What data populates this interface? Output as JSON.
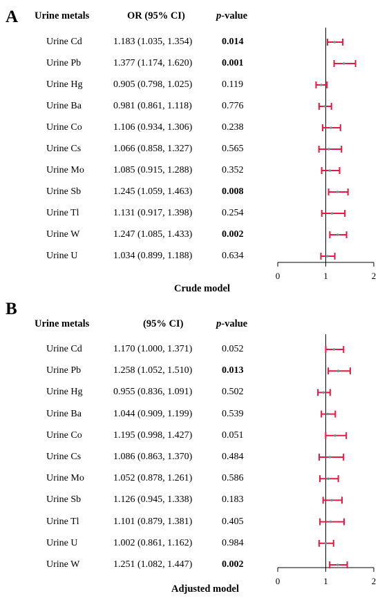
{
  "chart_data": [
    {
      "type": "forest",
      "panel_label": "A",
      "model_label": "Crude model",
      "headers": {
        "metal": "Urine metals",
        "or": "OR (95% CI)",
        "p": "p-value",
        "p_italic": "p",
        "p_rest": "-value"
      },
      "x_ticks": [
        0,
        1,
        2
      ],
      "xlim": [
        0,
        2
      ],
      "reference_line": 1,
      "rows": [
        {
          "metal": "Urine Cd",
          "or": 1.183,
          "lo": 1.035,
          "hi": 1.354,
          "or_text": "1.183 (1.035, 1.354)",
          "p": "0.014",
          "significant": true
        },
        {
          "metal": "Urine Pb",
          "or": 1.377,
          "lo": 1.174,
          "hi": 1.62,
          "or_text": "1.377 (1.174, 1.620)",
          "p": "0.001",
          "significant": true
        },
        {
          "metal": "Urine Hg",
          "or": 0.905,
          "lo": 0.798,
          "hi": 1.025,
          "or_text": "0.905 (0.798, 1.025)",
          "p": "0.119",
          "significant": false
        },
        {
          "metal": "Urine Ba",
          "or": 0.981,
          "lo": 0.861,
          "hi": 1.118,
          "or_text": "0.981 (0.861, 1.118)",
          "p": "0.776",
          "significant": false
        },
        {
          "metal": "Urine Co",
          "or": 1.106,
          "lo": 0.934,
          "hi": 1.306,
          "or_text": "1.106 (0.934, 1.306)",
          "p": "0.238",
          "significant": false
        },
        {
          "metal": "Urine Cs",
          "or": 1.066,
          "lo": 0.858,
          "hi": 1.327,
          "or_text": "1.066 (0.858, 1.327)",
          "p": "0.565",
          "significant": false
        },
        {
          "metal": "Urine Mo",
          "or": 1.085,
          "lo": 0.915,
          "hi": 1.288,
          "or_text": "1.085 (0.915, 1.288)",
          "p": "0.352",
          "significant": false
        },
        {
          "metal": "Urine Sb",
          "or": 1.245,
          "lo": 1.059,
          "hi": 1.463,
          "or_text": "1.245 (1.059, 1.463)",
          "p": "0.008",
          "significant": true
        },
        {
          "metal": "Urine Tl",
          "or": 1.131,
          "lo": 0.917,
          "hi": 1.398,
          "or_text": "1.131 (0.917, 1.398)",
          "p": "0.254",
          "significant": false
        },
        {
          "metal": "Urine W",
          "or": 1.247,
          "lo": 1.085,
          "hi": 1.433,
          "or_text": "1.247 (1.085, 1.433)",
          "p": "0.002",
          "significant": true
        },
        {
          "metal": "Urine U",
          "or": 1.034,
          "lo": 0.899,
          "hi": 1.188,
          "or_text": "1.034 (0.899, 1.188)",
          "p": "0.634",
          "significant": false
        }
      ]
    },
    {
      "type": "forest",
      "panel_label": "B",
      "model_label": "Adjusted model",
      "headers": {
        "metal": "Urine metals",
        "or": "(95% CI)",
        "p": "p-value",
        "p_italic": "p",
        "p_rest": "-value"
      },
      "x_ticks": [
        0,
        1,
        2
      ],
      "xlim": [
        0,
        2
      ],
      "reference_line": 1,
      "rows": [
        {
          "metal": "Urine Cd",
          "or": 1.17,
          "lo": 1.0,
          "hi": 1.371,
          "or_text": "1.170 (1.000, 1.371)",
          "p": "0.052",
          "significant": false
        },
        {
          "metal": "Urine Pb",
          "or": 1.258,
          "lo": 1.052,
          "hi": 1.51,
          "or_text": "1.258 (1.052, 1.510)",
          "p": "0.013",
          "significant": true
        },
        {
          "metal": "Urine Hg",
          "or": 0.955,
          "lo": 0.836,
          "hi": 1.091,
          "or_text": "0.955 (0.836, 1.091)",
          "p": "0.502",
          "significant": false
        },
        {
          "metal": "Urine Ba",
          "or": 1.044,
          "lo": 0.909,
          "hi": 1.199,
          "or_text": "1.044 (0.909, 1.199)",
          "p": "0.539",
          "significant": false
        },
        {
          "metal": "Urine Co",
          "or": 1.195,
          "lo": 0.998,
          "hi": 1.427,
          "or_text": "1.195 (0.998, 1.427)",
          "p": "0.051",
          "significant": false
        },
        {
          "metal": "Urine Cs",
          "or": 1.086,
          "lo": 0.863,
          "hi": 1.37,
          "or_text": "1.086 (0.863, 1.370)",
          "p": "0.484",
          "significant": false
        },
        {
          "metal": "Urine Mo",
          "or": 1.052,
          "lo": 0.878,
          "hi": 1.261,
          "or_text": "1.052 (0.878, 1.261)",
          "p": "0.586",
          "significant": false
        },
        {
          "metal": "Urine Sb",
          "or": 1.126,
          "lo": 0.945,
          "hi": 1.338,
          "or_text": "1.126 (0.945, 1.338)",
          "p": "0.183",
          "significant": false
        },
        {
          "metal": "Urine Tl",
          "or": 1.101,
          "lo": 0.879,
          "hi": 1.381,
          "or_text": "1.101 (0.879, 1.381)",
          "p": "0.405",
          "significant": false
        },
        {
          "metal": "Urine U",
          "or": 1.002,
          "lo": 0.861,
          "hi": 1.162,
          "or_text": "1.002 (0.861, 1.162)",
          "p": "0.984",
          "significant": false
        },
        {
          "metal": "Urine W",
          "or": 1.251,
          "lo": 1.082,
          "hi": 1.447,
          "or_text": "1.251 (1.082, 1.447)",
          "p": "0.002",
          "significant": true
        }
      ]
    }
  ],
  "colors": {
    "error_bar": "#e8173f",
    "point": "#4aa39a",
    "axis": "#000000"
  }
}
